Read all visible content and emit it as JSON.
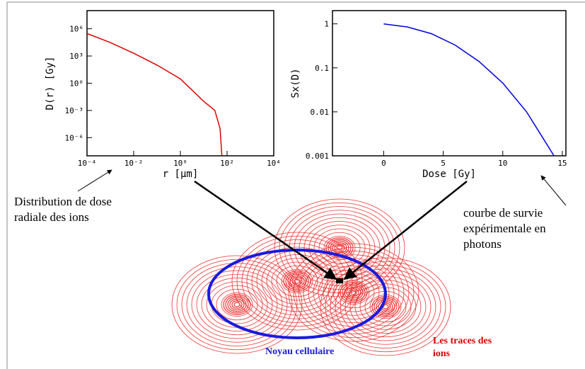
{
  "chart_data": [
    {
      "type": "line",
      "y_label": "D(r)  [Gy]",
      "x_label": "r  [µm]",
      "log_x": true,
      "log_y": true,
      "x": [
        0.0001,
        0.001,
        0.01,
        0.1,
        1,
        10,
        30,
        50,
        60
      ],
      "series": [
        {
          "color": "#e00000",
          "values": [
            300000,
            30000,
            2000,
            100,
            3,
            0.01,
            0.001,
            1e-05,
            1e-08
          ]
        }
      ],
      "xlim": [
        0.0001,
        10000
      ],
      "xticks": [
        {
          "value": 0.0001,
          "label": "10⁻⁴"
        },
        {
          "value": 0.01,
          "label": "10⁻²"
        },
        {
          "value": 1,
          "label": "10⁰"
        },
        {
          "value": 100,
          "label": "10²"
        },
        {
          "value": 10000,
          "label": "10⁴"
        }
      ],
      "ylim": [
        1e-08,
        100000000
      ],
      "yticks": [
        {
          "value": 1000000,
          "label": "10⁶"
        },
        {
          "value": 1000,
          "label": "10³"
        },
        {
          "value": 1,
          "label": "10⁰"
        },
        {
          "value": 0.001,
          "label": "10⁻³"
        },
        {
          "value": 1e-06,
          "label": "10⁻⁶"
        }
      ]
    },
    {
      "type": "line",
      "y_label": "Sx(D)",
      "x_label": "Dose  [Gy]",
      "log_x": false,
      "log_y": true,
      "x": [
        0,
        2,
        4,
        6,
        8,
        10,
        12,
        14.3
      ],
      "series": [
        {
          "color": "#0000e0",
          "values": [
            1,
            0.85,
            0.6,
            0.33,
            0.14,
            0.045,
            0.01,
            0.001
          ]
        }
      ],
      "xlim": [
        -4.3,
        15.3
      ],
      "xticks": [
        0,
        5,
        10,
        15
      ],
      "ylim": [
        0.001,
        2
      ],
      "yticks": [
        1,
        0.1,
        0.01,
        0.001
      ]
    }
  ],
  "annotations": {
    "dose_distribution": [
      "Distribution de dose",
      "radiale des ions"
    ],
    "survival_curve": [
      "courbe de survie",
      "expérimentale en",
      "photons"
    ],
    "nucleus": "Noyau cellulaire",
    "ion_tracks": [
      "Les traces des",
      "ions"
    ]
  }
}
